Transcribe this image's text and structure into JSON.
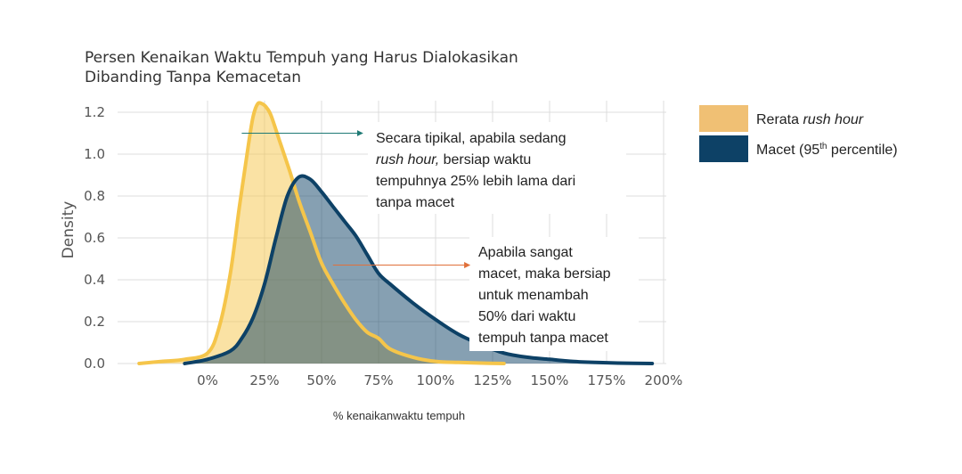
{
  "chart_data": {
    "type": "area",
    "title": [
      "Persen Kenaikan Waktu Tempuh yang Harus Dialokasikan",
      "Dibanding Tanpa Kemacetan"
    ],
    "xlabel": "% kenaikanwaktu tempuh",
    "ylabel": "Density",
    "x_ticks": [
      0,
      25,
      50,
      75,
      100,
      125,
      150,
      175,
      200
    ],
    "x_tick_labels": [
      "0%",
      "25%",
      "50%",
      "75%",
      "100%",
      "125%",
      "150%",
      "175%",
      "200%"
    ],
    "y_ticks": [
      0.0,
      0.2,
      0.4,
      0.6,
      0.8,
      1.0,
      1.2
    ],
    "y_tick_labels": [
      "0.0",
      "0.2",
      "0.4",
      "0.6",
      "0.8",
      "1.0",
      "1.2"
    ],
    "xlim": [
      -30,
      205
    ],
    "ylim": [
      0,
      1.24
    ],
    "grid": true,
    "legend_position": "right",
    "series": [
      {
        "name": "Rerata rush hour",
        "fill": "#f5c54a",
        "fill_opacity": 0.5,
        "stroke": "#f5c54a",
        "x": [
          -30,
          -20,
          -10,
          0,
          5,
          10,
          14,
          18,
          20,
          22,
          24,
          26,
          28,
          32,
          36,
          40,
          45,
          50,
          55,
          60,
          65,
          70,
          75,
          80,
          90,
          100,
          110,
          120,
          130
        ],
        "y": [
          0.0,
          0.01,
          0.02,
          0.05,
          0.17,
          0.43,
          0.75,
          1.05,
          1.18,
          1.24,
          1.24,
          1.22,
          1.18,
          1.05,
          0.92,
          0.78,
          0.63,
          0.48,
          0.38,
          0.29,
          0.21,
          0.15,
          0.12,
          0.07,
          0.03,
          0.01,
          0.005,
          0.002,
          0.0
        ]
      },
      {
        "name": "Macet (95th percentile)",
        "fill": "#0d4166",
        "fill_opacity": 0.5,
        "stroke": "#0d4166",
        "x": [
          -10,
          0,
          10,
          15,
          20,
          25,
          30,
          35,
          40,
          45,
          50,
          55,
          60,
          65,
          70,
          75,
          80,
          90,
          100,
          110,
          120,
          130,
          140,
          150,
          160,
          170,
          180,
          195
        ],
        "y": [
          0.0,
          0.02,
          0.06,
          0.12,
          0.22,
          0.38,
          0.6,
          0.8,
          0.89,
          0.88,
          0.82,
          0.75,
          0.68,
          0.61,
          0.52,
          0.43,
          0.38,
          0.29,
          0.21,
          0.14,
          0.09,
          0.05,
          0.03,
          0.02,
          0.01,
          0.005,
          0.002,
          0.0
        ]
      }
    ],
    "legend": [
      {
        "text_plain": "Rerata ",
        "text_italic": "rush hour",
        "color": "#f0c074"
      },
      {
        "text_plain": "Macet (95",
        "superscript": "th",
        "text_after": " percentile)",
        "color": "#0d4166"
      }
    ],
    "annotations": [
      {
        "arrow_color": "#1f7a75",
        "arrow_from": [
          15,
          1.1
        ],
        "arrow_to": [
          68,
          1.1
        ],
        "lines": [
          {
            "plain": "Secara tipikal, apabila sedang"
          },
          {
            "italic": "rush hour,",
            "plain": " bersiap waktu"
          },
          {
            "plain": "tempuhnya 25% lebih lama dari"
          },
          {
            "plain": "tanpa macet"
          }
        ]
      },
      {
        "arrow_color": "#e0703a",
        "arrow_from": [
          55,
          0.47
        ],
        "arrow_to": [
          115,
          0.47
        ],
        "lines": [
          {
            "plain": "Apabila sangat"
          },
          {
            "plain": "macet, maka bersiap"
          },
          {
            "plain": "untuk menambah"
          },
          {
            "plain": "50% dari waktu"
          },
          {
            "plain": "tempuh tanpa macet"
          }
        ]
      }
    ]
  }
}
